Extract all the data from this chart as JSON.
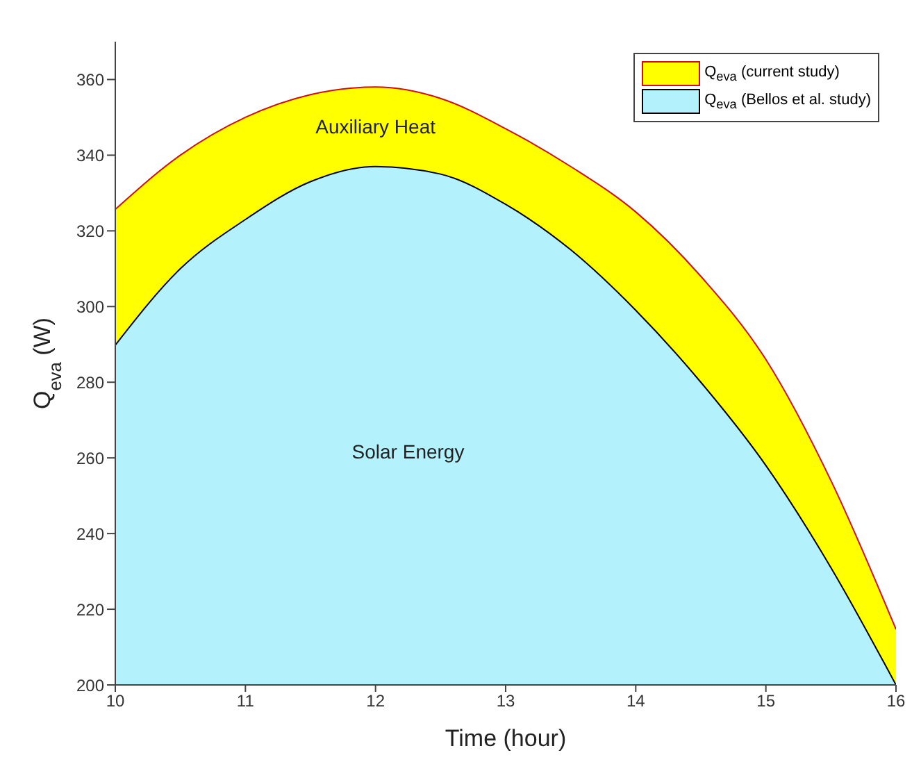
{
  "chart_data": {
    "type": "area",
    "xlabel": "Time (hour)",
    "ylabel": "Q$_{eva}$ (W)",
    "x": [
      10,
      10.5,
      11,
      11.5,
      12,
      12.5,
      13,
      13.5,
      14,
      14.5,
      15,
      15.5,
      16
    ],
    "series": [
      {
        "name": "Q$_{eva}$ (current study)",
        "color": "#ffff00",
        "values": [
          325.7,
          340,
          350,
          356,
          358,
          355,
          347,
          337,
          325,
          308,
          286,
          254,
          214.7
        ]
      },
      {
        "name": "Q$_{eva}$ (Bellos et al. study)",
        "color": "#b3f2fc",
        "values": [
          289.8,
          310,
          323,
          333,
          337,
          335,
          327,
          315,
          299,
          280,
          258,
          231,
          200
        ]
      }
    ],
    "xlim": [
      10,
      16
    ],
    "xticks": [
      10,
      11,
      12,
      13,
      14,
      15,
      16
    ],
    "ylim": [
      200,
      370
    ],
    "yticks": [
      200,
      220,
      240,
      260,
      280,
      300,
      320,
      340,
      360
    ],
    "legend": "top right",
    "grid": false,
    "annotations": [
      "Auxiliary Heat",
      "Solar Energy"
    ]
  }
}
